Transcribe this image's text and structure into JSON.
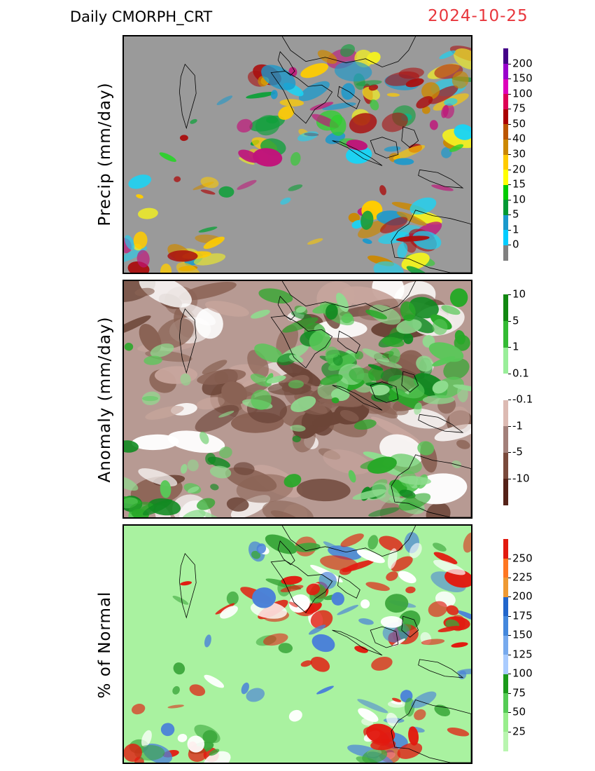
{
  "header": {
    "title": "Daily  CMORPH_CRT",
    "date": "2024-10-25",
    "date_color": "#e8363c"
  },
  "panels": [
    {
      "id": "precip",
      "ylabel": "Precip (mm/day)",
      "background": "#9a9a9a",
      "colorbar": {
        "colors": [
          "#808080",
          "#00ccff",
          "#1a99cc",
          "#009933",
          "#00cc00",
          "#ffff00",
          "#ffcc00",
          "#cc8800",
          "#bb5500",
          "#aa0000",
          "#dd0055",
          "#dd00bb",
          "#9900cc",
          "#440088"
        ],
        "labels": [
          "0",
          "1",
          "5",
          "10",
          "15",
          "20",
          "30",
          "40",
          "50",
          "75",
          "100",
          "150",
          "200"
        ]
      },
      "rain_palette": [
        "#19d4f5",
        "#1a99cc",
        "#12a03c",
        "#2ed02e",
        "#f2ef22",
        "#ffcc00",
        "#cc8800",
        "#aa1010",
        "#c0147a"
      ]
    },
    {
      "id": "anomaly",
      "ylabel": "Anomaly (mm/day)",
      "background": "#b79a93",
      "colorbar": {
        "colors": [
          "#552218",
          "#7a4a3c",
          "#a3807a",
          "#dcbab2",
          "#ffffff",
          "#99ee99",
          "#33bb33",
          "#118811"
        ],
        "labels": [
          "-10",
          "-5",
          "-1",
          "-0.1",
          "0.1",
          "1",
          "5",
          "10"
        ]
      },
      "rain_palette": [
        "#58c858",
        "#28a828",
        "#0f8a20",
        "#8fdc8f"
      ],
      "dry_palette": [
        "#6c4538",
        "#8a6254",
        "#c8a69d",
        "#ffffff"
      ]
    },
    {
      "id": "percent",
      "ylabel": "% of Normal",
      "background": "#a9f2a0",
      "colorbar": {
        "colors": [
          "#b9f5b0",
          "#98ee8c",
          "#55cc55",
          "#1a9a1a",
          "#aaccff",
          "#77aaee",
          "#4488dd",
          "#2266cc",
          "#ee9933",
          "#ff7722",
          "#e21a0f"
        ],
        "labels": [
          "25",
          "50",
          "75",
          "100",
          "125",
          "150",
          "175",
          "200",
          "225",
          "250"
        ]
      },
      "rain_palette": [
        "#e21a0f",
        "#e21a0f",
        "#3aa63a",
        "#4b82d8",
        "#ffffff"
      ]
    }
  ]
}
